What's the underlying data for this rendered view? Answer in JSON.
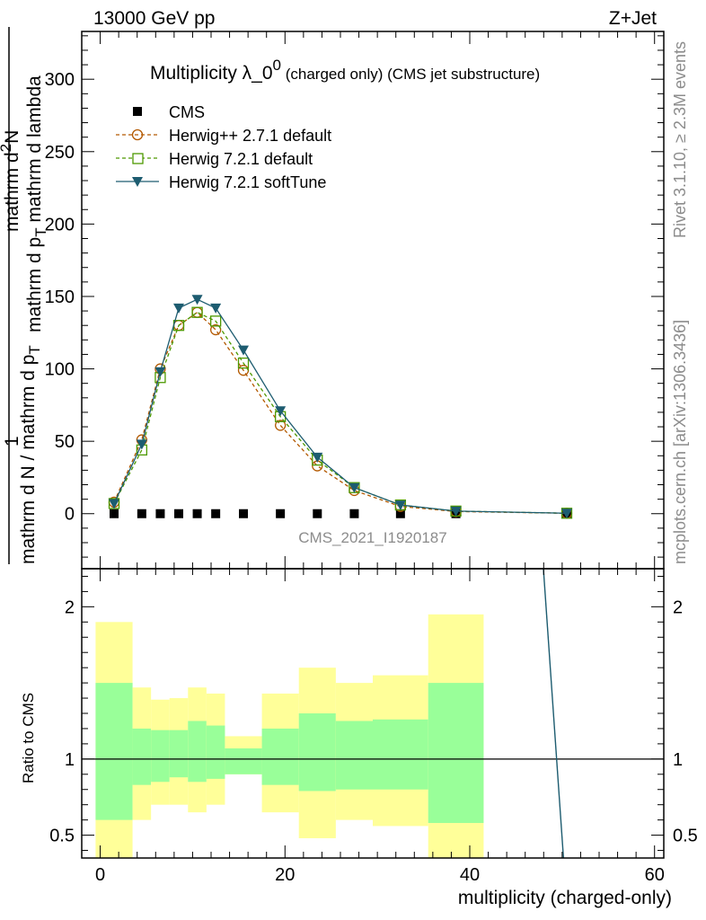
{
  "header": {
    "left": "13000 GeV pp",
    "right": "Z+Jet"
  },
  "side_text": {
    "rivet": "Rivet 3.1.10, ≥ 2.3M events",
    "mcplots": "mcplots.cern.ch [arXiv:1306.3436]"
  },
  "watermark": "CMS_2021_I1920187",
  "main_title": {
    "main": "Multiplicity λ_0",
    "sup": "0",
    "sub": " (charged only) (CMS jet substructure)"
  },
  "ylabel": {
    "one": "1",
    "denominator_left": "mathrm d N / mathrm d p",
    "denominator_sub": "T",
    "numerator_upper": "mathrm d",
    "numerator_upper_sup": "2",
    "numerator_upper_end": "N",
    "numerator_lower": "mathrm d p",
    "numerator_lower_sub": "T",
    "numerator_lower_end": " mathrm d lambda"
  },
  "chart_data": [
    {
      "type": "line",
      "title": "Multiplicity λ_0^0 (charged only) (CMS jet substructure)",
      "xlabel": "multiplicity (charged-only)",
      "xlim": [
        -2,
        61
      ],
      "ylim": [
        -38,
        333
      ],
      "yticks": [
        0,
        50,
        100,
        150,
        200,
        250,
        300
      ],
      "xticks": [
        0,
        20,
        40,
        60
      ],
      "legend_position": "top-left",
      "x": [
        1.5,
        4.5,
        6.5,
        8.5,
        10.5,
        12.5,
        15.5,
        19.5,
        23.5,
        27.5,
        32.5,
        38.5,
        50.5
      ],
      "series": [
        {
          "name": "CMS",
          "marker": "square",
          "color": "#000000",
          "values": [
            0,
            0,
            0,
            0,
            0,
            0,
            0,
            0,
            0,
            0,
            0,
            0,
            0
          ]
        },
        {
          "name": "Herwig++ 2.7.1 default",
          "marker": "open-circle",
          "style": "dashed",
          "color": "#b35900",
          "values": [
            8,
            51,
            100,
            130,
            139,
            127,
            99,
            61,
            33,
            16,
            5,
            1.5,
            0.3
          ]
        },
        {
          "name": "Herwig 7.2.1 default",
          "marker": "open-square",
          "style": "dashed",
          "color": "#4d9900",
          "values": [
            7,
            44,
            94,
            130,
            139,
            133,
            104,
            67,
            37,
            18,
            6,
            1.8,
            0.3
          ]
        },
        {
          "name": "Herwig 7.2.1 softTune",
          "marker": "filled-triangle-down",
          "style": "solid",
          "color": "#1d5c70",
          "values": [
            7,
            48,
            98,
            142,
            148,
            142,
            113,
            71,
            39,
            18,
            6,
            1.8,
            0.3
          ]
        }
      ]
    },
    {
      "type": "area",
      "ylabel": "Ratio to CMS",
      "xlabel": "multiplicity (charged-only)",
      "xlim": [
        -2,
        61
      ],
      "ylim": [
        0.35,
        2.25
      ],
      "yticks": [
        0.5,
        1,
        2
      ],
      "xticks": [
        0,
        20,
        40,
        60
      ],
      "reference_line": 1,
      "bins": [
        {
          "lo": -0.5,
          "hi": 3.5,
          "green_lo": 0.6,
          "green_hi": 1.5,
          "yellow_lo": 0.3,
          "yellow_hi": 1.9
        },
        {
          "lo": 3.5,
          "hi": 5.5,
          "green_lo": 0.83,
          "green_hi": 1.2,
          "yellow_lo": 0.6,
          "yellow_hi": 1.47
        },
        {
          "lo": 5.5,
          "hi": 7.5,
          "green_lo": 0.85,
          "green_hi": 1.19,
          "yellow_lo": 0.7,
          "yellow_hi": 1.39
        },
        {
          "lo": 7.5,
          "hi": 9.5,
          "green_lo": 0.88,
          "green_hi": 1.19,
          "yellow_lo": 0.7,
          "yellow_hi": 1.4
        },
        {
          "lo": 9.5,
          "hi": 11.5,
          "green_lo": 0.85,
          "green_hi": 1.25,
          "yellow_lo": 0.65,
          "yellow_hi": 1.47
        },
        {
          "lo": 11.5,
          "hi": 13.5,
          "green_lo": 0.87,
          "green_hi": 1.22,
          "yellow_lo": 0.7,
          "yellow_hi": 1.43
        },
        {
          "lo": 13.5,
          "hi": 17.5,
          "green_lo": 0.9,
          "green_hi": 1.07,
          "yellow_lo": 0.9,
          "yellow_hi": 1.15
        },
        {
          "lo": 17.5,
          "hi": 21.5,
          "green_lo": 0.83,
          "green_hi": 1.2,
          "yellow_lo": 0.65,
          "yellow_hi": 1.43
        },
        {
          "lo": 21.5,
          "hi": 25.5,
          "green_lo": 0.79,
          "green_hi": 1.3,
          "yellow_lo": 0.48,
          "yellow_hi": 1.6
        },
        {
          "lo": 25.5,
          "hi": 29.5,
          "green_lo": 0.8,
          "green_hi": 1.25,
          "yellow_lo": 0.6,
          "yellow_hi": 1.5
        },
        {
          "lo": 29.5,
          "hi": 35.5,
          "green_lo": 0.8,
          "green_hi": 1.26,
          "yellow_lo": 0.56,
          "yellow_hi": 1.55
        },
        {
          "lo": 35.5,
          "hi": 41.5,
          "green_lo": 0.58,
          "green_hi": 1.5,
          "yellow_lo": 0.3,
          "yellow_hi": 1.95
        }
      ],
      "series": [
        {
          "name": "Herwig 7.2.1 softTune",
          "color": "#1d5c70",
          "points": [
            [
              47.8,
              2.4
            ],
            [
              50.2,
              0.3
            ]
          ]
        }
      ]
    }
  ]
}
